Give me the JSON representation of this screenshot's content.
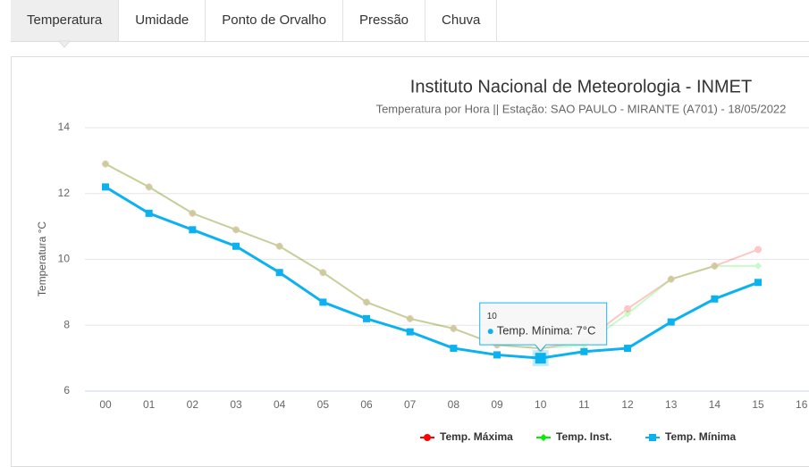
{
  "tabs": [
    "Temperatura",
    "Umidade",
    "Ponto de Orvalho",
    "Pressão",
    "Chuva"
  ],
  "active_tab": 0,
  "chart_data": {
    "type": "line",
    "title": "Instituto Nacional de Meteorologia - INMET",
    "subtitle": "Temperatura por Hora || Estação: SAO PAULO - MIRANTE (A701) - 18/05/2022",
    "y_label": "Temperatura °C",
    "categories": [
      "00",
      "01",
      "02",
      "03",
      "04",
      "05",
      "06",
      "07",
      "08",
      "09",
      "10",
      "11",
      "12",
      "13",
      "14",
      "15",
      "16"
    ],
    "ylim": [
      6,
      14
    ],
    "yticks": [
      6,
      8,
      10,
      12,
      14
    ],
    "grid": true,
    "legend": "bottom",
    "highlighted": "Temp. Mínima",
    "series": [
      {
        "name": "Temp. Máxima",
        "color": "#ff0000",
        "marker": "circle",
        "values": [
          12.9,
          12.2,
          11.4,
          10.9,
          10.4,
          9.6,
          8.7,
          8.2,
          7.9,
          7.4,
          7.3,
          7.5,
          8.5,
          9.4,
          9.8,
          10.3,
          null
        ]
      },
      {
        "name": "Temp. Inst.",
        "color": "#00ee00",
        "marker": "diamond",
        "values": [
          12.9,
          12.2,
          11.4,
          10.9,
          10.4,
          9.6,
          8.7,
          8.2,
          7.9,
          7.4,
          7.3,
          7.4,
          8.35,
          9.4,
          9.8,
          9.8,
          null
        ]
      },
      {
        "name": "Temp. Mínima",
        "color": "#0cb1ef",
        "marker": "square",
        "values": [
          12.2,
          11.4,
          10.9,
          10.4,
          9.6,
          8.7,
          8.2,
          7.8,
          7.3,
          7.1,
          7.0,
          7.2,
          7.3,
          8.1,
          8.8,
          9.3,
          null
        ]
      }
    ],
    "tooltip": {
      "header": "10",
      "text": "Temp. Mínima: 7°C",
      "series": 2,
      "index": 10
    }
  }
}
